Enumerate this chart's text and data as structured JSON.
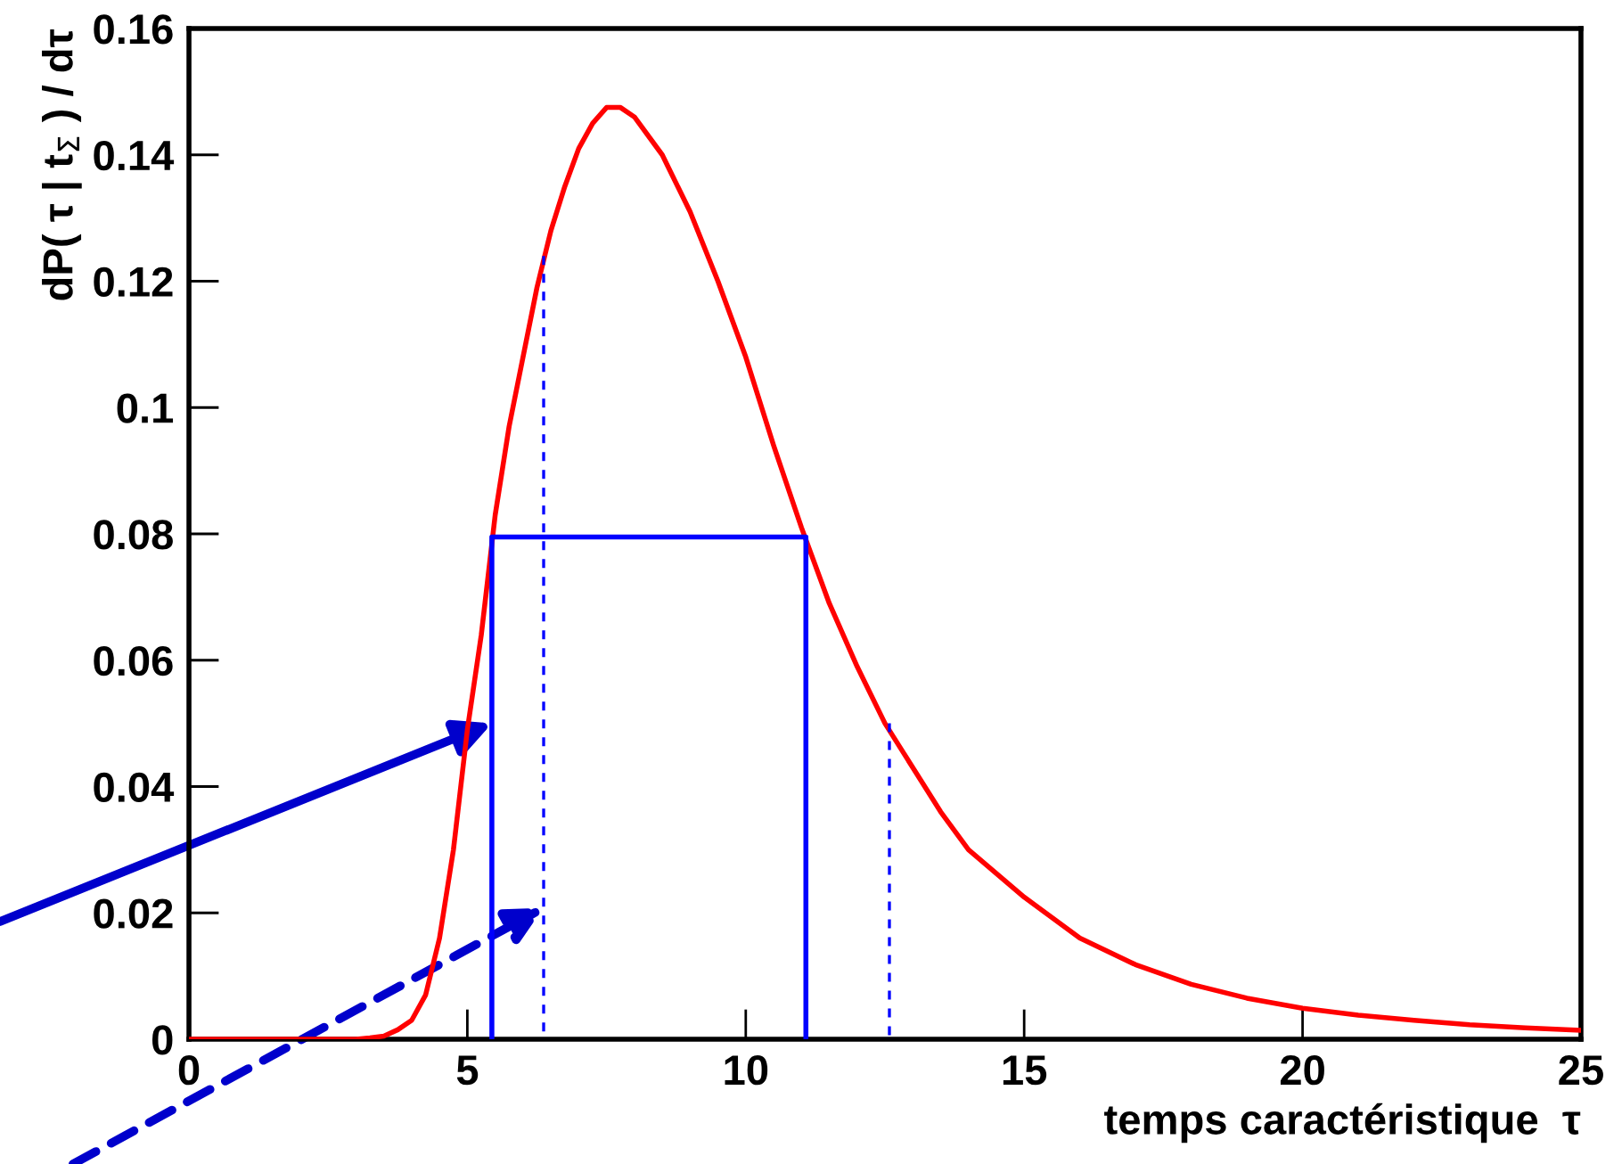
{
  "chart_data": {
    "type": "line",
    "xlabel": "temps caractéristique  τ",
    "ylabel": "dP( τ | t$_{Σ}$ ) / dτ",
    "xlim": [
      0,
      25
    ],
    "ylim": [
      0,
      0.16
    ],
    "xticks": [
      0,
      5,
      10,
      15,
      20,
      25
    ],
    "yticks": [
      0,
      0.02,
      0.04,
      0.06,
      0.08,
      0.1,
      0.12,
      0.14,
      0.16
    ],
    "grid": false,
    "legend": false,
    "series": [
      {
        "color": "#ff0000",
        "line_style": "solid",
        "x": [
          0,
          2.5,
          3,
          3.25,
          3.5,
          3.75,
          4,
          4.25,
          4.5,
          4.75,
          5,
          5.25,
          5.5,
          5.75,
          6,
          6.25,
          6.5,
          6.75,
          7,
          7.25,
          7.5,
          7.75,
          8,
          8.5,
          9,
          9.5,
          10,
          10.5,
          11,
          11.5,
          12,
          12.5,
          13,
          13.5,
          14,
          15,
          16,
          17,
          18,
          19,
          20,
          21,
          22,
          23,
          24,
          25
        ],
        "values": [
          0,
          0,
          0,
          0.0002,
          0.0005,
          0.0015,
          0.003,
          0.007,
          0.016,
          0.03,
          0.049,
          0.064,
          0.083,
          0.097,
          0.108,
          0.119,
          0.128,
          0.135,
          0.141,
          0.145,
          0.1475,
          0.1475,
          0.146,
          0.14,
          0.131,
          0.12,
          0.108,
          0.094,
          0.081,
          0.069,
          0.059,
          0.05,
          0.043,
          0.036,
          0.03,
          0.0225,
          0.016,
          0.0118,
          0.0087,
          0.0065,
          0.0049,
          0.0038,
          0.003,
          0.0023,
          0.0018,
          0.0014
        ]
      },
      {
        "color": "#0000ff",
        "line_style": "solid",
        "x": [
          5.44,
          5.44,
          11.08,
          11.08
        ],
        "values": [
          0,
          0.0795,
          0.0795,
          0
        ]
      },
      {
        "color": "#0000ff",
        "line_style": "dashed",
        "x": [
          6.37,
          6.37
        ],
        "values": [
          0.124,
          0
        ]
      },
      {
        "color": "#0000ff",
        "line_style": "dashed",
        "x": [
          12.58,
          12.58
        ],
        "values": [
          0.05,
          0
        ]
      }
    ]
  }
}
